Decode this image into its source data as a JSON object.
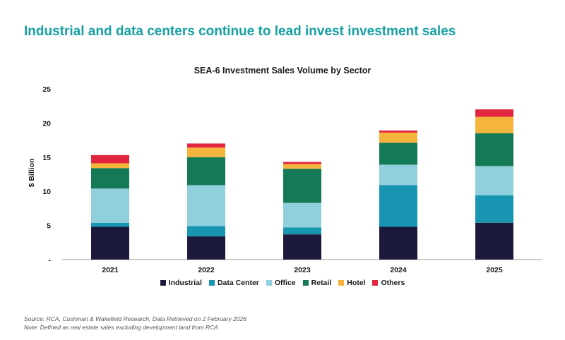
{
  "headline": "Industrial and data centers continue to lead invest investment sales",
  "chart_data": {
    "type": "bar",
    "stacked": true,
    "title": "SEA-6 Investment Sales Volume by Sector",
    "xlabel": "",
    "ylabel": "$ Billion",
    "ylim": [
      0,
      25
    ],
    "yticks": [
      0,
      5,
      10,
      15,
      20,
      25
    ],
    "ytick_labels": [
      "-",
      "5",
      "10",
      "15",
      "20",
      "25"
    ],
    "grid": false,
    "legend_position": "bottom",
    "categories": [
      "2021",
      "2022",
      "2023",
      "2024",
      "2025"
    ],
    "series": [
      {
        "name": "Industrial",
        "color": "#1b1a3c",
        "values": [
          4.8,
          3.4,
          3.7,
          4.8,
          5.4
        ]
      },
      {
        "name": "Data Center",
        "color": "#1895b0",
        "values": [
          0.6,
          1.5,
          1.0,
          6.1,
          4.0
        ]
      },
      {
        "name": "Office",
        "color": "#8fd0dc",
        "values": [
          5.0,
          6.0,
          3.6,
          3.0,
          4.3
        ]
      },
      {
        "name": "Retail",
        "color": "#137a55",
        "values": [
          3.0,
          4.1,
          5.0,
          3.2,
          4.8
        ]
      },
      {
        "name": "Hotel",
        "color": "#f5b53d",
        "values": [
          0.7,
          1.4,
          0.7,
          1.5,
          2.4
        ]
      },
      {
        "name": "Others",
        "color": "#e3263f",
        "values": [
          1.2,
          0.6,
          0.3,
          0.3,
          1.1
        ]
      }
    ]
  },
  "notes": {
    "source": "Source: RCA, Cushman & Wakefield Research, Data Retrieved on 2 February 2026",
    "note": "Note: Defined as real estate sales excluding development land from RCA"
  }
}
